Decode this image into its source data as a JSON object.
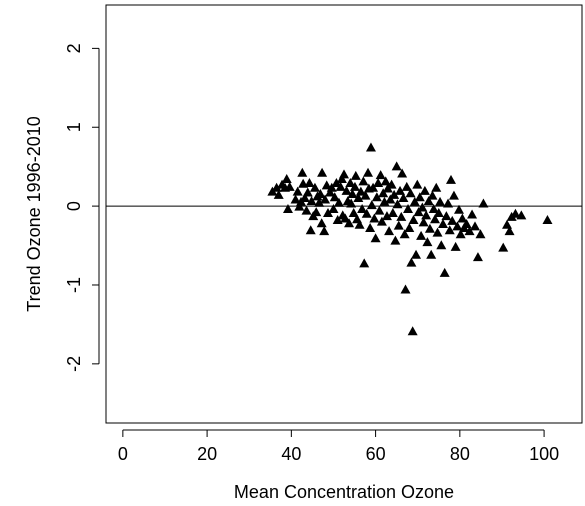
{
  "chart_data": {
    "type": "scatter",
    "xlabel": "Mean Concentration Ozone",
    "ylabel": "Trend Ozone 1996-2010",
    "xlim": [
      -4,
      109
    ],
    "ylim": [
      -2.75,
      2.55
    ],
    "xticks": [
      0,
      20,
      40,
      60,
      80,
      100
    ],
    "yticks": [
      -2,
      -1,
      0,
      1,
      2
    ],
    "grid": false,
    "reference_line_y": 0,
    "marker": "filled-triangle",
    "series": [
      {
        "points": [
          [
            35.5,
            0.18
          ],
          [
            36.5,
            0.23
          ],
          [
            37.0,
            0.14
          ],
          [
            37.8,
            0.27
          ],
          [
            38.5,
            0.23
          ],
          [
            38.9,
            0.34
          ],
          [
            39.2,
            -0.04
          ],
          [
            39.6,
            0.24
          ],
          [
            41.0,
            0.08
          ],
          [
            41.5,
            0.18
          ],
          [
            41.9,
            -0.01
          ],
          [
            42.3,
            0.05
          ],
          [
            42.6,
            0.42
          ],
          [
            42.8,
            0.28
          ],
          [
            43.2,
            0.1
          ],
          [
            43.6,
            -0.06
          ],
          [
            43.9,
            0.17
          ],
          [
            44.3,
            0.29
          ],
          [
            44.6,
            -0.31
          ],
          [
            44.8,
            0.06
          ],
          [
            45.2,
            -0.13
          ],
          [
            45.6,
            0.23
          ],
          [
            45.9,
            -0.08
          ],
          [
            46.2,
            0.12
          ],
          [
            46.6,
            0.04
          ],
          [
            46.9,
            0.15
          ],
          [
            47.2,
            -0.22
          ],
          [
            47.3,
            0.42
          ],
          [
            47.8,
            -0.32
          ],
          [
            48.0,
            0.08
          ],
          [
            48.4,
            0.26
          ],
          [
            48.7,
            -0.09
          ],
          [
            49.2,
            0.17
          ],
          [
            49.6,
            0.23
          ],
          [
            50.0,
            -0.04
          ],
          [
            50.3,
            0.11
          ],
          [
            50.7,
            0.29
          ],
          [
            51.0,
            -0.18
          ],
          [
            51.3,
            0.04
          ],
          [
            51.7,
            0.24
          ],
          [
            52.0,
            0.34
          ],
          [
            52.2,
            -0.12
          ],
          [
            52.5,
            0.4
          ],
          [
            52.8,
            -0.16
          ],
          [
            53.1,
            0.19
          ],
          [
            53.4,
            0.06
          ],
          [
            53.7,
            -0.22
          ],
          [
            54.0,
            0.29
          ],
          [
            54.2,
            0.03
          ],
          [
            54.5,
            0.15
          ],
          [
            54.8,
            -0.09
          ],
          [
            55.1,
            0.24
          ],
          [
            55.3,
            0.38
          ],
          [
            55.6,
            -0.17
          ],
          [
            55.9,
            0.1
          ],
          [
            56.2,
            -0.24
          ],
          [
            56.5,
            0.18
          ],
          [
            56.8,
            -0.04
          ],
          [
            57.1,
            0.31
          ],
          [
            57.3,
            -0.73
          ],
          [
            57.6,
            0.13
          ],
          [
            57.9,
            -0.1
          ],
          [
            58.2,
            0.42
          ],
          [
            58.4,
            0.22
          ],
          [
            58.7,
            -0.28
          ],
          [
            58.9,
            0.74
          ],
          [
            59.1,
            0.01
          ],
          [
            59.4,
            0.23
          ],
          [
            59.7,
            -0.16
          ],
          [
            60.0,
            -0.41
          ],
          [
            60.3,
            0.11
          ],
          [
            60.6,
            0.29
          ],
          [
            60.9,
            -0.06
          ],
          [
            61.2,
            0.39
          ],
          [
            61.5,
            -0.2
          ],
          [
            61.8,
            0.16
          ],
          [
            62.1,
            0.05
          ],
          [
            62.4,
            0.31
          ],
          [
            62.7,
            -0.13
          ],
          [
            62.9,
            0.22
          ],
          [
            63.2,
            -0.32
          ],
          [
            63.5,
            0.08
          ],
          [
            63.8,
            0.27
          ],
          [
            64.1,
            -0.09
          ],
          [
            64.4,
            0.14
          ],
          [
            64.7,
            -0.44
          ],
          [
            65.0,
            0.5
          ],
          [
            65.2,
            0.02
          ],
          [
            65.5,
            -0.25
          ],
          [
            65.8,
            0.19
          ],
          [
            66.1,
            -0.14
          ],
          [
            66.3,
            0.41
          ],
          [
            66.6,
            0.1
          ],
          [
            66.9,
            -0.36
          ],
          [
            67.1,
            -1.06
          ],
          [
            67.4,
            0.24
          ],
          [
            67.7,
            -0.04
          ],
          [
            68.0,
            -0.28
          ],
          [
            68.3,
            0.16
          ],
          [
            68.5,
            -0.72
          ],
          [
            68.8,
            -1.59
          ],
          [
            69.0,
            -0.18
          ],
          [
            69.3,
            0.05
          ],
          [
            69.6,
            -0.62
          ],
          [
            69.9,
            0.27
          ],
          [
            70.2,
            -0.08
          ],
          [
            70.5,
            0.11
          ],
          [
            70.8,
            -0.38
          ],
          [
            71.1,
            -0.02
          ],
          [
            71.4,
            -0.21
          ],
          [
            71.7,
            0.19
          ],
          [
            72.0,
            -0.12
          ],
          [
            72.3,
            -0.46
          ],
          [
            72.6,
            0.06
          ],
          [
            72.9,
            -0.29
          ],
          [
            73.2,
            -0.62
          ],
          [
            73.5,
            0.13
          ],
          [
            73.8,
            -0.04
          ],
          [
            74.1,
            -0.17
          ],
          [
            74.4,
            0.23
          ],
          [
            74.7,
            -0.34
          ],
          [
            75.0,
            -0.09
          ],
          [
            75.3,
            0.05
          ],
          [
            75.6,
            -0.5
          ],
          [
            76.0,
            -0.23
          ],
          [
            76.4,
            -0.85
          ],
          [
            76.8,
            -0.13
          ],
          [
            77.2,
            0.03
          ],
          [
            77.6,
            -0.31
          ],
          [
            77.9,
            0.33
          ],
          [
            78.2,
            -0.19
          ],
          [
            78.6,
            0.13
          ],
          [
            79.0,
            -0.52
          ],
          [
            79.4,
            -0.26
          ],
          [
            79.8,
            -0.05
          ],
          [
            80.2,
            -0.36
          ],
          [
            80.6,
            -0.16
          ],
          [
            81.0,
            -0.28
          ],
          [
            81.6,
            -0.23
          ],
          [
            82.3,
            -0.32
          ],
          [
            82.9,
            -0.11
          ],
          [
            83.6,
            -0.26
          ],
          [
            84.3,
            -0.65
          ],
          [
            84.9,
            -0.36
          ],
          [
            85.6,
            0.03
          ],
          [
            90.3,
            -0.53
          ],
          [
            91.2,
            -0.24
          ],
          [
            91.8,
            -0.32
          ],
          [
            92.3,
            -0.14
          ],
          [
            93.2,
            -0.1
          ],
          [
            94.6,
            -0.12
          ],
          [
            100.8,
            -0.18
          ]
        ]
      }
    ]
  }
}
